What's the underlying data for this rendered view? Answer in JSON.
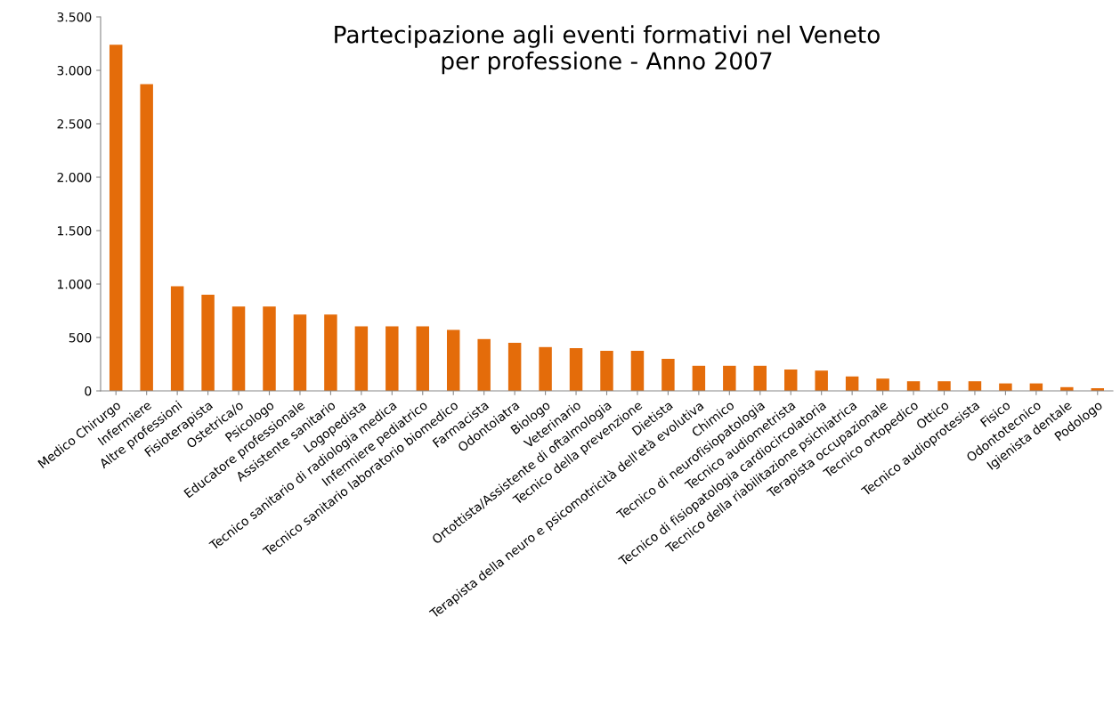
{
  "chart_data": {
    "type": "bar",
    "title": "Partecipazione agli eventi formativi nel Veneto\nper professione - Anno 2007",
    "categories": [
      "Medico Chirurgo",
      "Infermiere",
      "Altre professioni",
      "Fisioterapista",
      "Ostetrica/o",
      "Psicologo",
      "Educatore professionale",
      "Assistente sanitario",
      "Logopedista",
      "Tecnico sanitario di radiologia medica",
      "Infermiere pediatrico",
      "Tecnico sanitario laboratorio biomedico",
      "Farmacista",
      "Odontoiatra",
      "Biologo",
      "Veterinario",
      "Ortottista/Assistente di oftalmologia",
      "Tecnico della prevenzione",
      "Dietista",
      "Terapista della neuro e psicomotricità dell'età evolutiva",
      "Chimico",
      "Tecnico di neurofisiopatologia",
      "Tecnico audiometrista",
      "Tecnico di fisiopatologia cardiocircolatoria",
      "Tecnico della riabilitazione psichiatrica",
      "Terapista occupazionale",
      "Tecnico ortopedico",
      "Ottico",
      "Tecnico audioprotesista",
      "Fisico",
      "Odontotecnico",
      "Igienista dentale",
      "Podologo"
    ],
    "values": [
      3240,
      2870,
      980,
      900,
      790,
      790,
      715,
      715,
      605,
      605,
      605,
      570,
      485,
      450,
      410,
      400,
      375,
      375,
      300,
      235,
      235,
      235,
      200,
      190,
      135,
      115,
      90,
      90,
      90,
      70,
      70,
      35,
      25
    ],
    "color": "#e46c0a",
    "ylim": [
      0,
      3500
    ],
    "yticks": [
      {
        "value": 0,
        "label": "0"
      },
      {
        "value": 500,
        "label": "500"
      },
      {
        "value": 1000,
        "label": "1.000"
      },
      {
        "value": 1500,
        "label": "1.500"
      },
      {
        "value": 2000,
        "label": "2.000"
      },
      {
        "value": 2500,
        "label": "2.500"
      },
      {
        "value": 3000,
        "label": "3.000"
      },
      {
        "value": 3500,
        "label": "3.500"
      }
    ],
    "grid": false
  }
}
